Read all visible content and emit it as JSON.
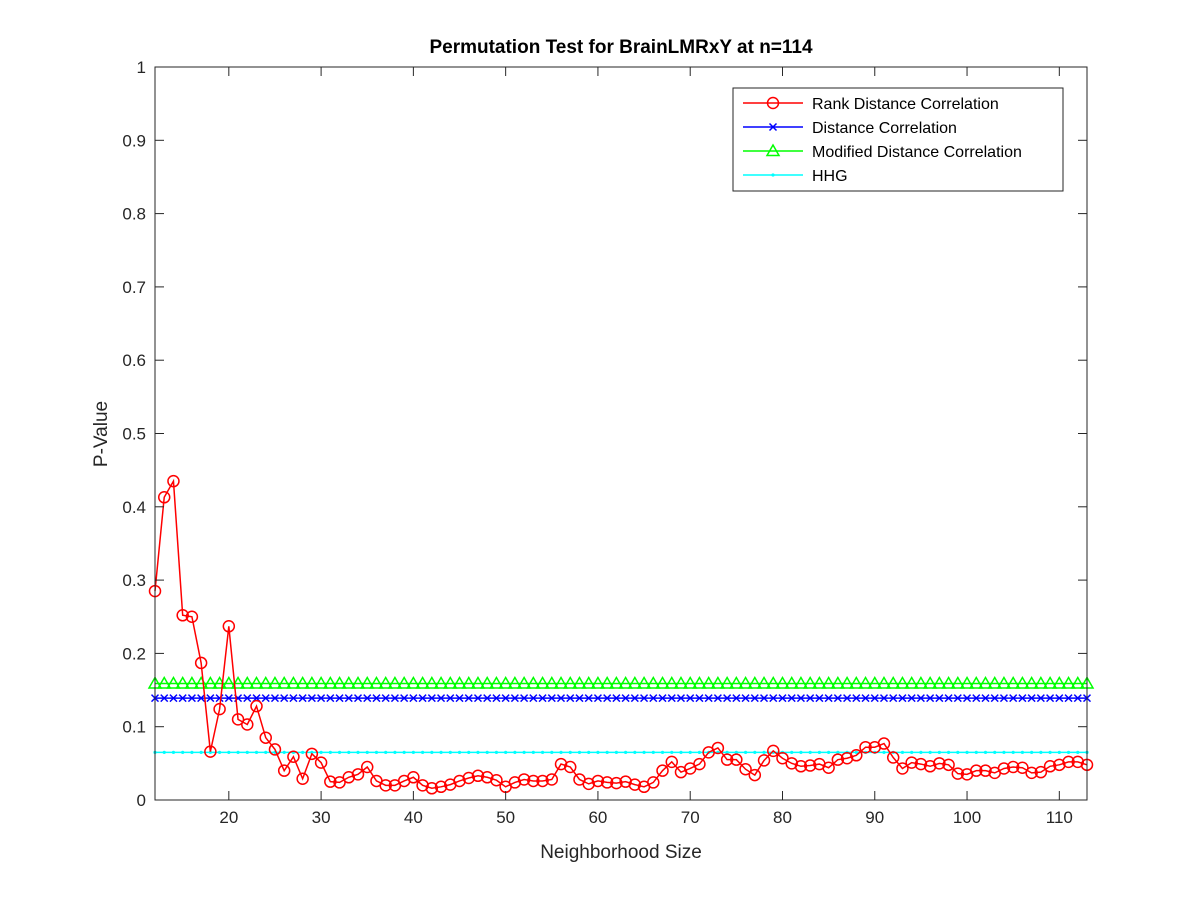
{
  "chart_data": {
    "type": "line",
    "title": "Permutation Test for BrainLMRxY at n=114",
    "xlabel": "Neighborhood Size",
    "ylabel": "P-Value",
    "xlim": [
      12,
      113
    ],
    "ylim": [
      0,
      1
    ],
    "xticks": [
      20,
      30,
      40,
      50,
      60,
      70,
      80,
      90,
      100,
      110
    ],
    "yticks": [
      0,
      0.1,
      0.2,
      0.3,
      0.4,
      0.5,
      0.6,
      0.7,
      0.8,
      0.9,
      1
    ],
    "xtick_labels": [
      "20",
      "30",
      "40",
      "50",
      "60",
      "70",
      "80",
      "90",
      "100",
      "110"
    ],
    "ytick_labels": [
      "0",
      "0.1",
      "0.2",
      "0.3",
      "0.4",
      "0.5",
      "0.6",
      "0.7",
      "0.8",
      "0.9",
      "1"
    ],
    "grid": false,
    "legend_position": "top-right",
    "x": [
      12,
      13,
      14,
      15,
      16,
      17,
      18,
      19,
      20,
      21,
      22,
      23,
      24,
      25,
      26,
      27,
      28,
      29,
      30,
      31,
      32,
      33,
      34,
      35,
      36,
      37,
      38,
      39,
      40,
      41,
      42,
      43,
      44,
      45,
      46,
      47,
      48,
      49,
      50,
      51,
      52,
      53,
      54,
      55,
      56,
      57,
      58,
      59,
      60,
      61,
      62,
      63,
      64,
      65,
      66,
      67,
      68,
      69,
      70,
      71,
      72,
      73,
      74,
      75,
      76,
      77,
      78,
      79,
      80,
      81,
      82,
      83,
      84,
      85,
      86,
      87,
      88,
      89,
      90,
      91,
      92,
      93,
      94,
      95,
      96,
      97,
      98,
      99,
      100,
      101,
      102,
      103,
      104,
      105,
      106,
      107,
      108,
      109,
      110,
      111,
      112,
      113
    ],
    "series": [
      {
        "name": "Rank Distance Correlation",
        "color": "#ff0000",
        "marker": "circle",
        "values": [
          0.285,
          0.413,
          0.435,
          0.252,
          0.25,
          0.187,
          0.066,
          0.124,
          0.237,
          0.11,
          0.103,
          0.128,
          0.085,
          0.069,
          0.04,
          0.059,
          0.029,
          0.063,
          0.051,
          0.025,
          0.024,
          0.031,
          0.035,
          0.045,
          0.026,
          0.02,
          0.02,
          0.026,
          0.031,
          0.02,
          0.016,
          0.018,
          0.021,
          0.026,
          0.03,
          0.033,
          0.031,
          0.027,
          0.018,
          0.024,
          0.028,
          0.026,
          0.026,
          0.028,
          0.049,
          0.045,
          0.028,
          0.022,
          0.026,
          0.024,
          0.023,
          0.025,
          0.021,
          0.018,
          0.024,
          0.04,
          0.052,
          0.038,
          0.043,
          0.049,
          0.065,
          0.071,
          0.055,
          0.055,
          0.042,
          0.034,
          0.054,
          0.067,
          0.057,
          0.05,
          0.046,
          0.047,
          0.049,
          0.044,
          0.055,
          0.057,
          0.061,
          0.072,
          0.072,
          0.077,
          0.058,
          0.043,
          0.051,
          0.049,
          0.046,
          0.05,
          0.048,
          0.036,
          0.035,
          0.04,
          0.04,
          0.037,
          0.043,
          0.045,
          0.044,
          0.037,
          0.038,
          0.046,
          0.048,
          0.052,
          0.052,
          0.048
        ]
      },
      {
        "name": "Distance Correlation",
        "color": "#0000ff",
        "marker": "x",
        "constant": 0.139
      },
      {
        "name": "Modified Distance Correlation",
        "color": "#00ff00",
        "marker": "triangle",
        "constant": 0.159
      },
      {
        "name": "HHG",
        "color": "#00ffff",
        "marker": "point",
        "constant": 0.065
      }
    ]
  }
}
